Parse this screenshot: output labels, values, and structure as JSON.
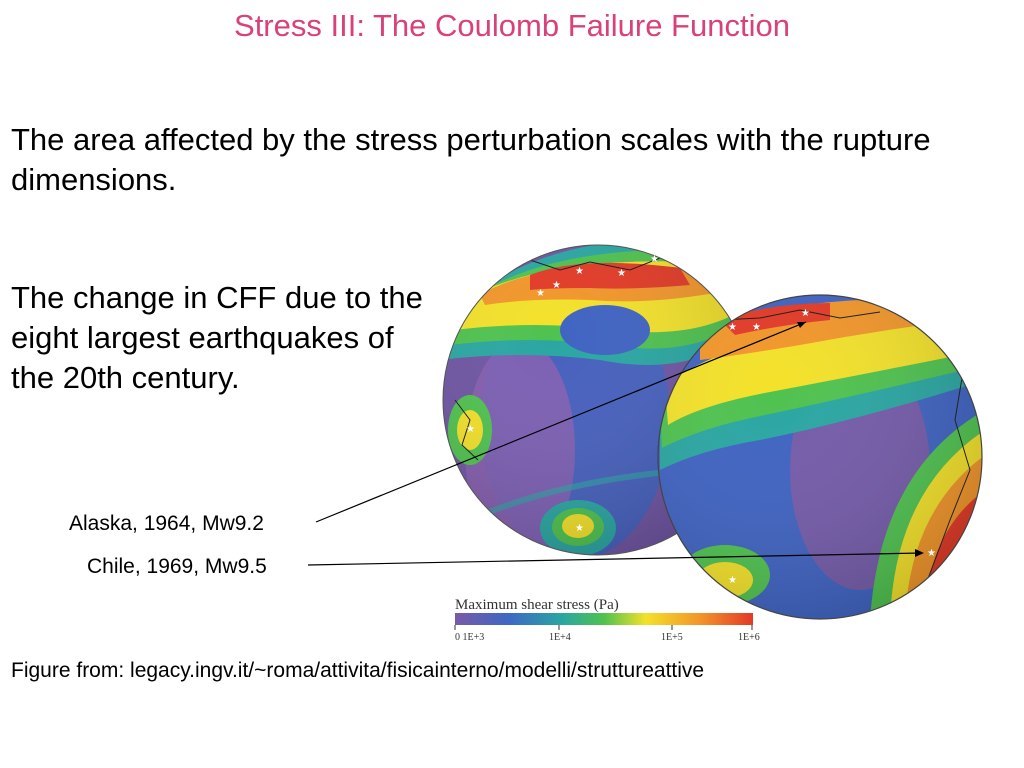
{
  "slide": {
    "title": "Stress III: The Coulomb Failure Function",
    "paragraph1": "The area affected by the stress perturbation scales with the rupture dimensions.",
    "paragraph2": "The change in CFF due to the eight largest earthquakes of the 20th century."
  },
  "annotations": {
    "alaska": "Alaska, 1964, Mw9.2",
    "chile": "Chile, 1969, Mw9.5"
  },
  "colorbar": {
    "title": "Maximum shear stress (Pa)",
    "ticks": [
      "0 1E+3",
      "1E+4",
      "1E+5",
      "1E+6"
    ]
  },
  "source": "Figure from: legacy.ingv.it/~roma/attivita/fisicainterno/modelli/struttureattive",
  "colors": {
    "title": "#d9417a",
    "purple": "#7a5aa6",
    "blue": "#3d68c4",
    "teal": "#2aa6a2",
    "green": "#4fc24f",
    "yellow": "#f3e12a",
    "orange": "#f2962a",
    "red": "#e23a26"
  }
}
